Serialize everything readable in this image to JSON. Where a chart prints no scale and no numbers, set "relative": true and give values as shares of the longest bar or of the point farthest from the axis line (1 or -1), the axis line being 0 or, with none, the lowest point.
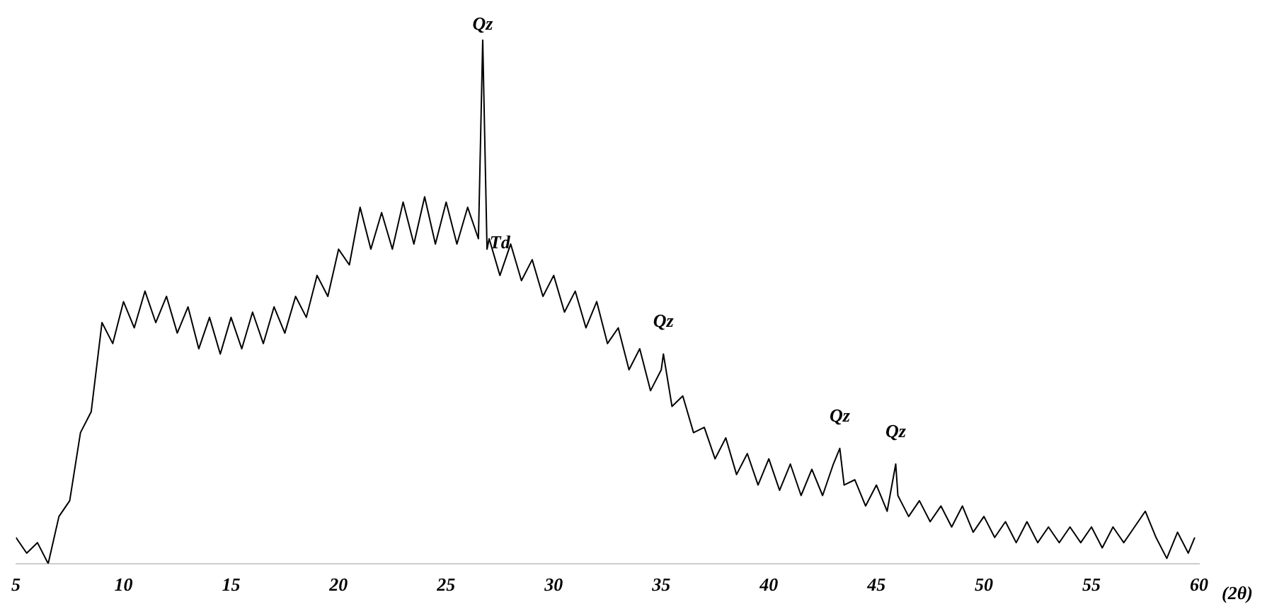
{
  "chart_data": {
    "type": "line",
    "relative": true,
    "xlabel": "(2θ)",
    "xlim": [
      5,
      60
    ],
    "xticks": [
      5,
      10,
      15,
      20,
      25,
      30,
      35,
      40,
      45,
      50,
      55,
      60
    ],
    "grid": false,
    "legend": false,
    "marker": "none",
    "line_style": "solid",
    "series": [
      {
        "color": "#000000",
        "x": [
          5,
          5.5,
          6,
          6.5,
          7,
          7.5,
          8,
          8.5,
          9,
          9.5,
          10,
          10.5,
          11,
          11.5,
          12,
          12.5,
          13,
          13.5,
          14,
          14.5,
          15,
          15.5,
          16,
          16.5,
          17,
          17.5,
          18,
          18.5,
          19,
          19.5,
          20,
          20.5,
          21,
          21.5,
          22,
          22.5,
          23,
          23.5,
          24,
          24.5,
          25,
          25.5,
          26,
          26.5,
          26.7,
          26.9,
          27,
          27.5,
          28,
          28.5,
          29,
          29.5,
          30,
          30.5,
          31,
          31.5,
          32,
          32.5,
          33,
          33.5,
          34,
          34.5,
          35,
          35.1,
          35.5,
          36,
          36.5,
          37,
          37.5,
          38,
          38.5,
          39,
          39.5,
          40,
          40.5,
          41,
          41.5,
          42,
          42.5,
          43,
          43.3,
          43.5,
          44,
          44.5,
          45,
          45.5,
          45.9,
          46,
          46.5,
          47,
          47.5,
          48,
          48.5,
          49,
          49.5,
          50,
          50.5,
          51,
          51.5,
          52,
          52.5,
          53,
          53.5,
          54,
          54.5,
          55,
          55.5,
          56,
          56.5,
          57,
          57.5,
          58,
          58.5,
          59,
          59.5,
          59.8
        ],
        "values": [
          0.05,
          0.02,
          0.04,
          0.0,
          0.09,
          0.12,
          0.25,
          0.29,
          0.46,
          0.42,
          0.5,
          0.45,
          0.52,
          0.46,
          0.51,
          0.44,
          0.49,
          0.41,
          0.47,
          0.4,
          0.47,
          0.41,
          0.48,
          0.42,
          0.49,
          0.44,
          0.51,
          0.47,
          0.55,
          0.51,
          0.6,
          0.57,
          0.68,
          0.6,
          0.67,
          0.6,
          0.69,
          0.61,
          0.7,
          0.61,
          0.69,
          0.61,
          0.68,
          0.62,
          1.0,
          0.6,
          0.62,
          0.55,
          0.61,
          0.54,
          0.58,
          0.51,
          0.55,
          0.48,
          0.52,
          0.45,
          0.5,
          0.42,
          0.45,
          0.37,
          0.41,
          0.33,
          0.37,
          0.4,
          0.3,
          0.32,
          0.25,
          0.26,
          0.2,
          0.24,
          0.17,
          0.21,
          0.15,
          0.2,
          0.14,
          0.19,
          0.13,
          0.18,
          0.13,
          0.19,
          0.22,
          0.15,
          0.16,
          0.11,
          0.15,
          0.1,
          0.19,
          0.13,
          0.09,
          0.12,
          0.08,
          0.11,
          0.07,
          0.11,
          0.06,
          0.09,
          0.05,
          0.08,
          0.04,
          0.08,
          0.04,
          0.07,
          0.04,
          0.07,
          0.04,
          0.07,
          0.03,
          0.07,
          0.04,
          0.07,
          0.1,
          0.05,
          0.01,
          0.06,
          0.02,
          0.05
        ]
      }
    ],
    "annotations": [
      {
        "text": "Qz",
        "x": 26.7,
        "y": 1.0
      },
      {
        "text": "Td",
        "x": 27.5,
        "y": 0.55
      },
      {
        "text": "Qz",
        "x": 35.1,
        "y": 0.4
      },
      {
        "text": "Qz",
        "x": 43.3,
        "y": 0.22
      },
      {
        "text": "Qz",
        "x": 45.9,
        "y": 0.19
      }
    ]
  }
}
